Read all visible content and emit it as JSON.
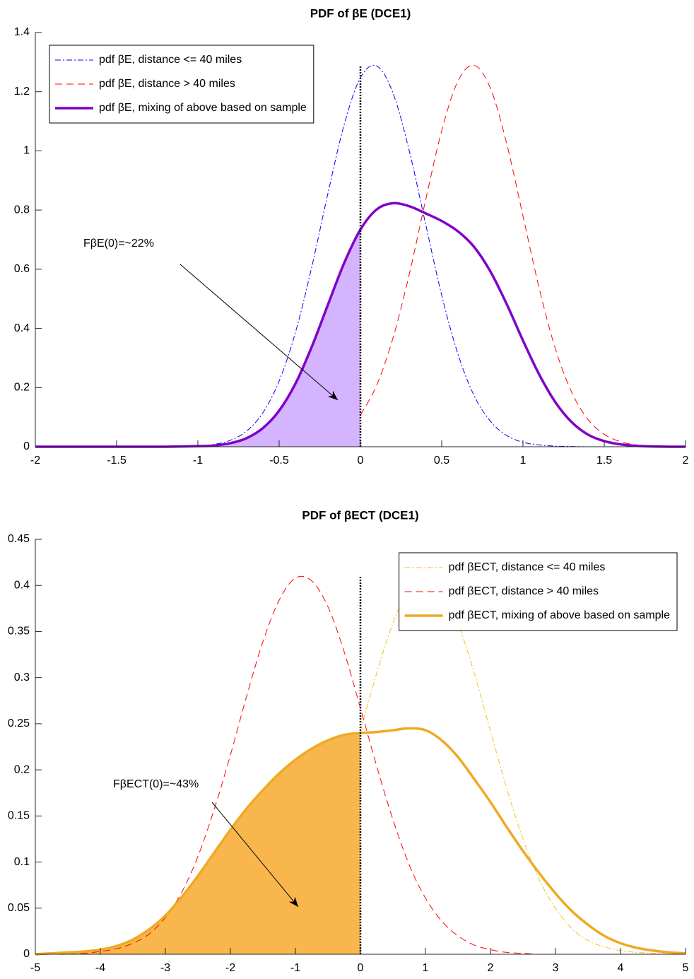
{
  "chart_data": [
    {
      "type": "line",
      "title": "PDF of βE (DCE1)",
      "x": [
        -2,
        -1.9,
        -1.8,
        -1.7,
        -1.6,
        -1.5,
        -1.4,
        -1.3,
        -1.2,
        -1.1,
        -1,
        -0.9,
        -0.8,
        -0.7,
        -0.6,
        -0.5,
        -0.4,
        -0.3,
        -0.2,
        -0.1,
        0,
        0.1,
        0.2,
        0.3,
        0.4,
        0.5,
        0.6,
        0.7,
        0.8,
        0.9,
        1,
        1.1,
        1.2,
        1.3,
        1.4,
        1.5,
        1.6,
        1.7,
        1.8,
        1.9,
        2
      ],
      "xlim": [
        -2,
        2
      ],
      "xticks": [
        -2,
        -1.5,
        -1,
        -0.5,
        0,
        0.5,
        1,
        1.5,
        2
      ],
      "ylim": [
        0,
        1.4
      ],
      "yticks": [
        0,
        0.2,
        0.4,
        0.6,
        0.8,
        1,
        1.2,
        1.4
      ],
      "legend": "upper left",
      "reference_line": {
        "x": 0,
        "top": 1.29
      },
      "annotation": "FβE(0)=~22%",
      "series": [
        {
          "name": "pdf βE, distance <= 40 miles",
          "color": "#0000ff",
          "style": "dash-dot",
          "width": 1,
          "values": [
            0,
            0,
            0,
            0,
            0,
            0,
            0,
            0,
            0,
            0.001,
            0.003,
            0.008,
            0.022,
            0.053,
            0.115,
            0.222,
            0.386,
            0.606,
            0.856,
            1.089,
            1.247,
            1.287,
            1.196,
            1.001,
            0.755,
            0.512,
            0.313,
            0.172,
            0.086,
            0.038,
            0.015,
            0.006,
            0.002,
            0.001,
            0,
            0,
            0,
            0,
            0,
            0,
            0
          ]
        },
        {
          "name": "pdf βE, distance > 40 miles",
          "color": "#ff0000",
          "style": "dashed",
          "width": 1,
          "values": [
            null,
            null,
            null,
            null,
            null,
            null,
            null,
            null,
            null,
            null,
            null,
            null,
            null,
            null,
            null,
            null,
            null,
            null,
            null,
            null,
            0.107,
            0.208,
            0.367,
            0.582,
            0.831,
            1.068,
            1.236,
            1.289,
            1.211,
            1.024,
            0.78,
            0.535,
            0.33,
            0.184,
            0.092,
            0.042,
            0.017,
            0.006,
            0.003,
            0.001,
            0
          ]
        },
        {
          "name": "pdf βE, mixing of above based on sample",
          "color": "#8000c8",
          "style": "solid",
          "width": 3.5,
          "fill": "#d4b3ff",
          "values": [
            0,
            0,
            0,
            0,
            0,
            0,
            0,
            0,
            0,
            0.001,
            0.002,
            0.004,
            0.012,
            0.029,
            0.063,
            0.122,
            0.213,
            0.337,
            0.48,
            0.621,
            0.734,
            0.802,
            0.823,
            0.813,
            0.789,
            0.763,
            0.728,
            0.675,
            0.592,
            0.482,
            0.359,
            0.244,
            0.15,
            0.083,
            0.041,
            0.019,
            0.008,
            0.003,
            0.001,
            0,
            0
          ]
        }
      ]
    },
    {
      "type": "line",
      "title": "PDF of βECT (DCE1)",
      "x": [
        -5,
        -4.75,
        -4.5,
        -4.25,
        -4,
        -3.75,
        -3.5,
        -3.25,
        -3,
        -2.75,
        -2.5,
        -2.25,
        -2,
        -1.75,
        -1.5,
        -1.25,
        -1,
        -0.75,
        -0.5,
        -0.25,
        0,
        0.25,
        0.5,
        0.75,
        1,
        1.25,
        1.5,
        1.75,
        2,
        2.25,
        2.5,
        2.75,
        3,
        3.25,
        3.5,
        3.75,
        4,
        4.25,
        4.5,
        4.75,
        5
      ],
      "xlim": [
        -5,
        5
      ],
      "xticks": [
        -5,
        -4,
        -3,
        -2,
        -1,
        0,
        1,
        2,
        3,
        4,
        5
      ],
      "ylim": [
        0,
        0.45
      ],
      "yticks": [
        0,
        0.05,
        0.1,
        0.15,
        0.2,
        0.25,
        0.3,
        0.35,
        0.4,
        0.45
      ],
      "legend": "upper right",
      "reference_line": {
        "x": 0,
        "top": 0.41
      },
      "annotation": "FβECT(0)=~43%",
      "series": [
        {
          "name": "pdf βECT, distance <= 40 miles",
          "color": "#f2c21b",
          "style": "dash-dot",
          "width": 1,
          "values": [
            null,
            null,
            null,
            null,
            null,
            null,
            null,
            null,
            null,
            null,
            null,
            null,
            null,
            null,
            null,
            null,
            null,
            null,
            null,
            null,
            0.242,
            0.305,
            0.359,
            0.397,
            0.41,
            0.397,
            0.359,
            0.305,
            0.242,
            0.18,
            0.125,
            0.081,
            0.05,
            0.028,
            0.015,
            0.008,
            0.004,
            0.002,
            0.001,
            0,
            0
          ]
        },
        {
          "name": "pdf βECT, distance > 40 miles",
          "color": "#ff0000",
          "style": "dashed",
          "width": 1,
          "values": [
            0,
            0,
            0,
            0.001,
            0.003,
            0.006,
            0.012,
            0.022,
            0.04,
            0.067,
            0.106,
            0.157,
            0.216,
            0.28,
            0.339,
            0.384,
            0.408,
            0.405,
            0.377,
            0.328,
            0.267,
            0.204,
            0.146,
            0.097,
            0.061,
            0.036,
            0.02,
            0.01,
            0.005,
            0.002,
            0.001,
            0,
            0,
            0,
            0,
            0,
            0,
            0,
            0,
            0,
            0
          ]
        },
        {
          "name": "pdf βECT, mixing of above based on sample",
          "color": "#eeaa22",
          "style": "solid",
          "width": 3.5,
          "fill": "#f8b64c",
          "values": [
            0,
            0.001,
            0.002,
            0.003,
            0.005,
            0.009,
            0.016,
            0.027,
            0.042,
            0.062,
            0.085,
            0.11,
            0.135,
            0.158,
            0.178,
            0.196,
            0.211,
            0.223,
            0.232,
            0.238,
            0.24,
            0.241,
            0.243,
            0.245,
            0.243,
            0.232,
            0.214,
            0.19,
            0.165,
            0.138,
            0.112,
            0.088,
            0.066,
            0.047,
            0.032,
            0.02,
            0.012,
            0.007,
            0.004,
            0.002,
            0.001
          ]
        }
      ]
    }
  ]
}
